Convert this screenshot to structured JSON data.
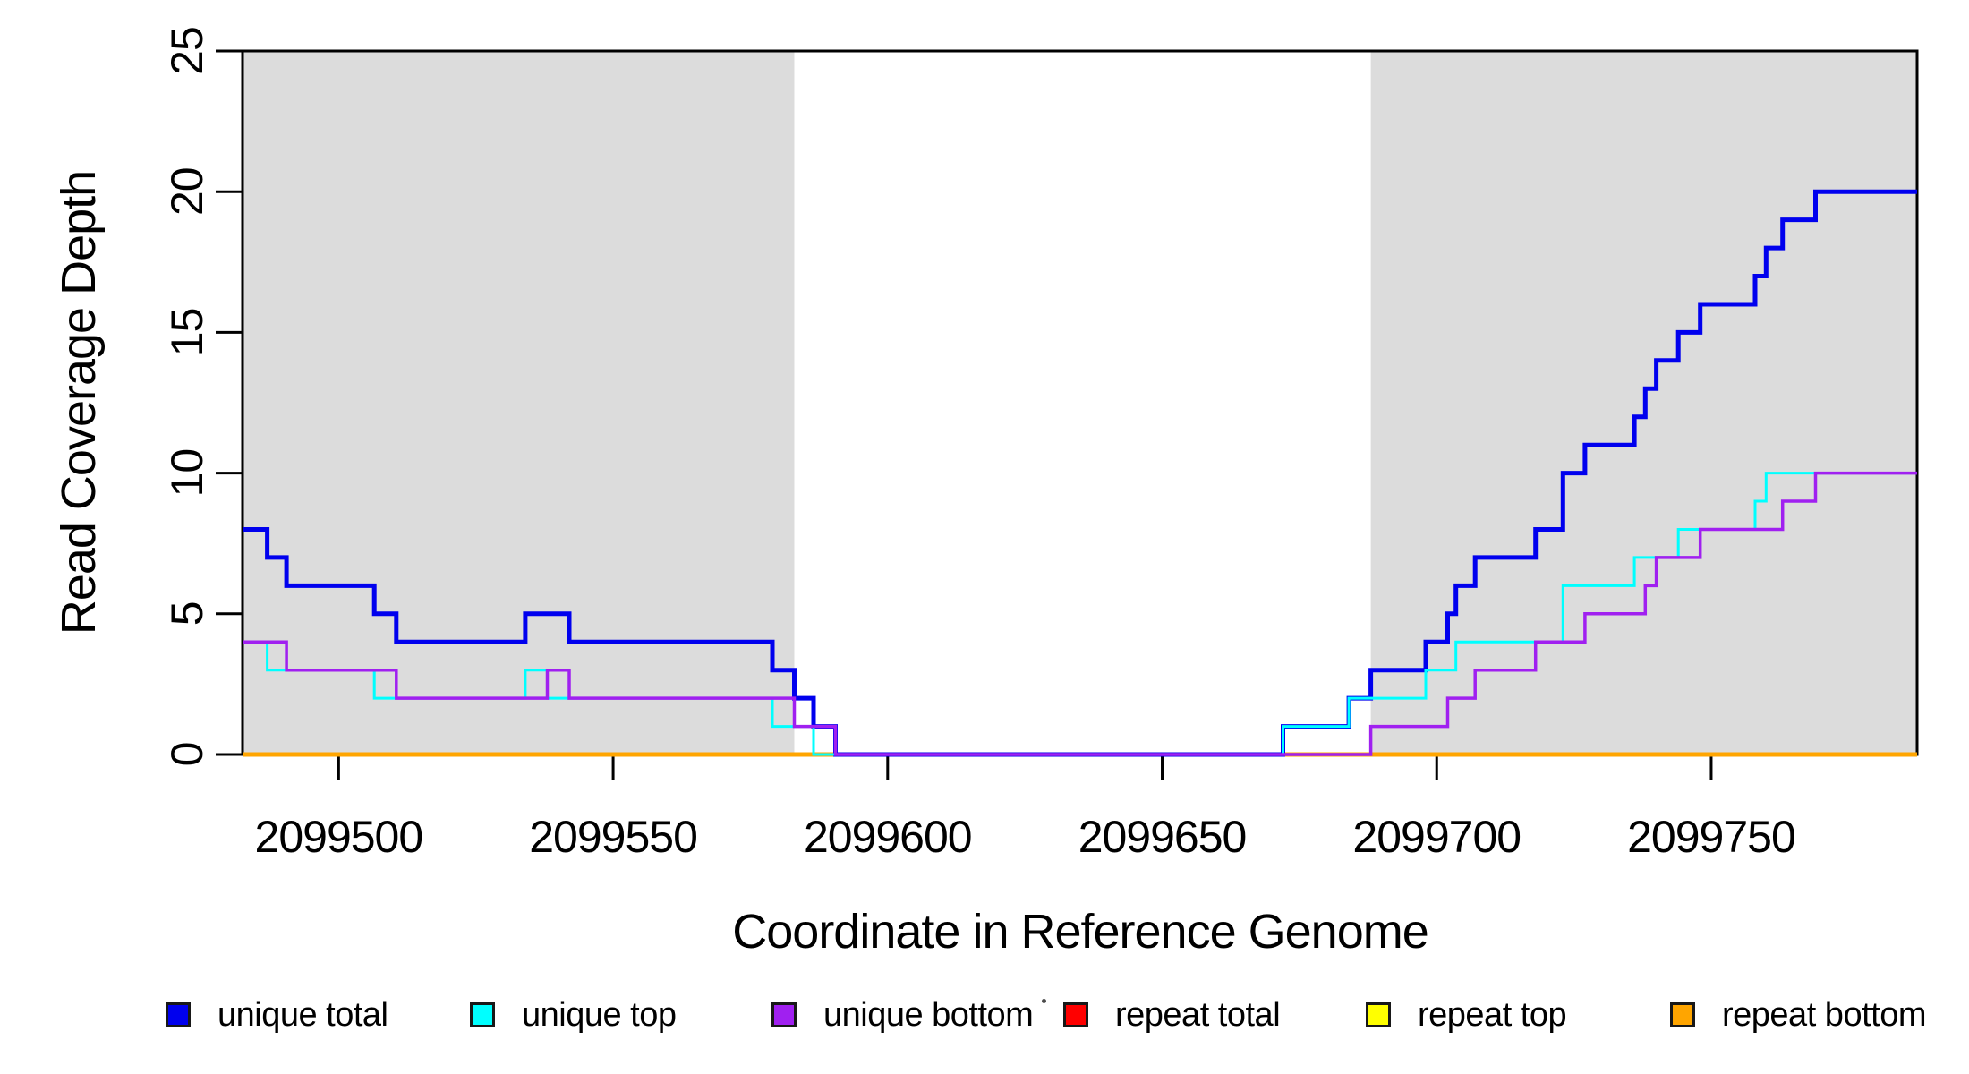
{
  "figure": {
    "x_axis_title": "Coordinate in Reference Genome",
    "y_axis_title": "Read Coverage Depth",
    "background_color": "#FFFFFF",
    "shade_color": "#DCDCDC",
    "axis_color": "#000000"
  },
  "chart_data": {
    "type": "line",
    "subtype": "step-after-coverage-plot",
    "title": "",
    "xlabel": "Coordinate in Reference Genome",
    "ylabel": "Read Coverage Depth",
    "xlim": [
      2099482.5,
      2099787.5
    ],
    "ylim": [
      0,
      25
    ],
    "grid": false,
    "xticks": [
      2099500,
      2099550,
      2099600,
      2099650,
      2099700,
      2099750
    ],
    "yticks": [
      0,
      5,
      10,
      15,
      20,
      25
    ],
    "x_tick_labels": [
      "2099500",
      "2099550",
      "2099600",
      "2099650",
      "2099700",
      "2099750"
    ],
    "y_tick_labels": [
      "0",
      "5",
      "10",
      "15",
      "20",
      "25"
    ],
    "shaded_regions": [
      {
        "x0": 2099482.5,
        "x1": 2099583.0,
        "color": "#DCDCDC"
      },
      {
        "x0": 2099688.0,
        "x1": 2099787.5,
        "color": "#DCDCDC"
      }
    ],
    "series": [
      {
        "name": "repeat total",
        "color": "#FF0000",
        "width": 4,
        "points": [
          [
            2099482.5,
            0
          ],
          [
            2099787.5,
            0
          ]
        ]
      },
      {
        "name": "repeat top",
        "color": "#FFFF00",
        "width": 3,
        "points": [
          [
            2099482.5,
            0
          ],
          [
            2099787.5,
            0
          ]
        ]
      },
      {
        "name": "repeat bottom",
        "color": "#FFA500",
        "width": 5,
        "points": [
          [
            2099482.5,
            0
          ],
          [
            2099787.5,
            0
          ]
        ]
      },
      {
        "name": "unique total",
        "color": "#0000EE",
        "width": 5,
        "points": [
          [
            2099482.5,
            8
          ],
          [
            2099487,
            7
          ],
          [
            2099490.5,
            6
          ],
          [
            2099506.5,
            5
          ],
          [
            2099510.5,
            4
          ],
          [
            2099534,
            5
          ],
          [
            2099542,
            4
          ],
          [
            2099579,
            3
          ],
          [
            2099583,
            2
          ],
          [
            2099586.5,
            1
          ],
          [
            2099590.5,
            0
          ],
          [
            2099672,
            1
          ],
          [
            2099684,
            2
          ],
          [
            2099688,
            3
          ],
          [
            2099698,
            4
          ],
          [
            2099702,
            5
          ],
          [
            2099703.5,
            6
          ],
          [
            2099707,
            7
          ],
          [
            2099718,
            8
          ],
          [
            2099723,
            10
          ],
          [
            2099727,
            11
          ],
          [
            2099736,
            12
          ],
          [
            2099738,
            13
          ],
          [
            2099740,
            14
          ],
          [
            2099744,
            15
          ],
          [
            2099748,
            16
          ],
          [
            2099758,
            17
          ],
          [
            2099760,
            18
          ],
          [
            2099763,
            19
          ],
          [
            2099769,
            20
          ],
          [
            2099787.5,
            20
          ]
        ]
      },
      {
        "name": "unique top",
        "color": "#00FFFF",
        "width": 3,
        "points": [
          [
            2099482.5,
            4
          ],
          [
            2099487,
            3
          ],
          [
            2099506.5,
            2
          ],
          [
            2099534,
            3
          ],
          [
            2099538,
            2
          ],
          [
            2099579,
            1
          ],
          [
            2099586.5,
            0
          ],
          [
            2099672,
            1
          ],
          [
            2099684,
            2
          ],
          [
            2099698,
            3
          ],
          [
            2099703.5,
            4
          ],
          [
            2099723,
            6
          ],
          [
            2099736,
            7
          ],
          [
            2099744,
            8
          ],
          [
            2099758,
            9
          ],
          [
            2099760,
            10
          ],
          [
            2099787.5,
            10
          ]
        ]
      },
      {
        "name": "unique bottom",
        "color": "#A020F0",
        "width": 3.5,
        "points": [
          [
            2099482.5,
            4
          ],
          [
            2099490.5,
            3
          ],
          [
            2099510.5,
            2
          ],
          [
            2099538,
            3
          ],
          [
            2099542,
            2
          ],
          [
            2099583,
            1
          ],
          [
            2099590.5,
            0
          ],
          [
            2099688,
            1
          ],
          [
            2099702,
            2
          ],
          [
            2099707,
            3
          ],
          [
            2099718,
            4
          ],
          [
            2099727,
            5
          ],
          [
            2099738,
            6
          ],
          [
            2099740,
            7
          ],
          [
            2099748,
            8
          ],
          [
            2099763,
            9
          ],
          [
            2099769,
            10
          ],
          [
            2099787.5,
            10
          ]
        ]
      }
    ]
  },
  "legend": {
    "items": [
      {
        "label": "unique total",
        "color": "#0000EE"
      },
      {
        "label": "unique top",
        "color": "#00FFFF"
      },
      {
        "label": "unique bottom",
        "color": "#A020F0"
      },
      {
        "label": "repeat total",
        "color": "#FF0000"
      },
      {
        "label": "repeat top",
        "color": "#FFFF00"
      },
      {
        "label": "repeat bottom",
        "color": "#FFA500"
      }
    ]
  }
}
